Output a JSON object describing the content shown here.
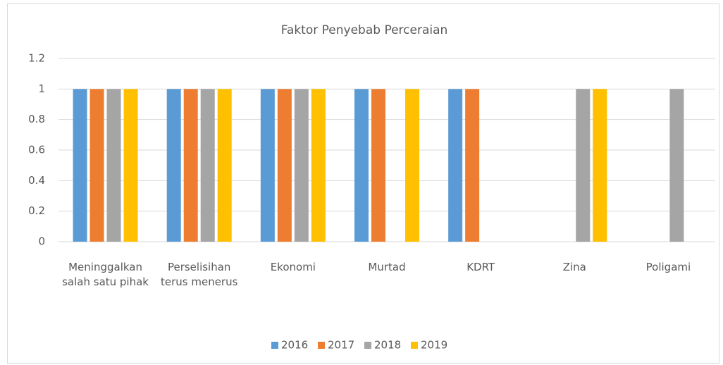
{
  "chart_data": {
    "type": "bar",
    "title": "Faktor Penyebab Perceraian",
    "categories": [
      "Meninggalkan salah satu pihak",
      "Perselisihan terus menerus",
      "Ekonomi",
      "Murtad",
      "KDRT",
      "Zina",
      "Poligami"
    ],
    "series": [
      {
        "name": "2016",
        "color": "#5b9bd5",
        "values": [
          1,
          1,
          1,
          1,
          1,
          0,
          0
        ]
      },
      {
        "name": "2017",
        "color": "#ed7d31",
        "values": [
          1,
          1,
          1,
          1,
          1,
          0,
          0
        ]
      },
      {
        "name": "2018",
        "color": "#a5a5a5",
        "values": [
          1,
          1,
          1,
          0,
          0,
          1,
          1
        ]
      },
      {
        "name": "2019",
        "color": "#ffc000",
        "values": [
          1,
          1,
          1,
          1,
          0,
          1,
          0
        ]
      }
    ],
    "ylim": [
      0,
      1.2
    ],
    "yticks": [
      0,
      0.2,
      0.4,
      0.6,
      0.8,
      1,
      1.2
    ],
    "grid": true,
    "legend": "bottom"
  }
}
